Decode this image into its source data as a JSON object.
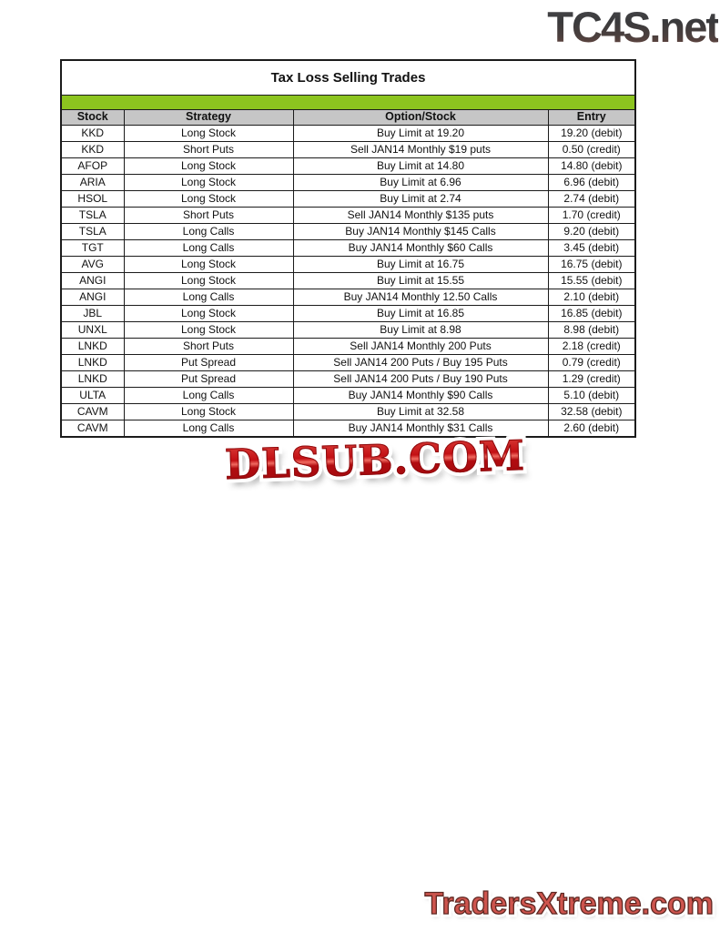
{
  "branding": {
    "top_logo": "TC4S.net",
    "watermark": "DLSUB.COM",
    "bottom_logo": "TradersXtreme.com"
  },
  "table": {
    "title": "Tax Loss Selling Trades",
    "columns": [
      "Stock",
      "Strategy",
      "Option/Stock",
      "Entry"
    ],
    "rows": [
      [
        "KKD",
        "Long Stock",
        "Buy Limit at 19.20",
        "19.20 (debit)"
      ],
      [
        "KKD",
        "Short Puts",
        "Sell JAN14 Monthly $19 puts",
        "0.50 (credit)"
      ],
      [
        "AFOP",
        "Long Stock",
        "Buy Limit at 14.80",
        "14.80 (debit)"
      ],
      [
        "ARIA",
        "Long Stock",
        "Buy Limit at 6.96",
        "6.96 (debit)"
      ],
      [
        "HSOL",
        "Long Stock",
        "Buy Limit at 2.74",
        "2.74 (debit)"
      ],
      [
        "TSLA",
        "Short Puts",
        "Sell JAN14 Monthly $135 puts",
        "1.70 (credit)"
      ],
      [
        "TSLA",
        "Long Calls",
        "Buy JAN14 Monthly $145 Calls",
        "9.20 (debit)"
      ],
      [
        "TGT",
        "Long Calls",
        "Buy JAN14 Monthly $60 Calls",
        "3.45 (debit)"
      ],
      [
        "AVG",
        "Long Stock",
        "Buy Limit at 16.75",
        "16.75 (debit)"
      ],
      [
        "ANGI",
        "Long Stock",
        "Buy Limit at 15.55",
        "15.55 (debit)"
      ],
      [
        "ANGI",
        "Long Calls",
        "Buy JAN14 Monthly 12.50 Calls",
        "2.10 (debit)"
      ],
      [
        "JBL",
        "Long Stock",
        "Buy Limit at 16.85",
        "16.85 (debit)"
      ],
      [
        "UNXL",
        "Long Stock",
        "Buy Limit at 8.98",
        "8.98 (debit)"
      ],
      [
        "LNKD",
        "Short Puts",
        "Sell JAN14 Monthly 200 Puts",
        "2.18 (credit)"
      ],
      [
        "LNKD",
        "Put Spread",
        "Sell JAN14 200 Puts / Buy 195 Puts",
        "0.79 (credit)"
      ],
      [
        "LNKD",
        "Put Spread",
        "Sell JAN14 200 Puts / Buy 190 Puts",
        "1.29 (credit)"
      ],
      [
        "ULTA",
        "Long Calls",
        "Buy JAN14 Monthly $90 Calls",
        "5.10 (debit)"
      ],
      [
        "CAVM",
        "Long Stock",
        "Buy Limit at 32.58",
        "32.58 (debit)"
      ],
      [
        "CAVM",
        "Long Calls",
        "Buy JAN14 Monthly $31 Calls",
        "2.60 (debit)"
      ]
    ]
  },
  "colors": {
    "accent_green": "#8CC41F",
    "header_gray": "#C6C6C6",
    "border_black": "#1B1B1B",
    "watermark_red": "#C81015",
    "bottom_logo_red": "#CE554E",
    "top_logo_dark": "#3A3A3C",
    "top_logo_maroon": "#70453E"
  }
}
